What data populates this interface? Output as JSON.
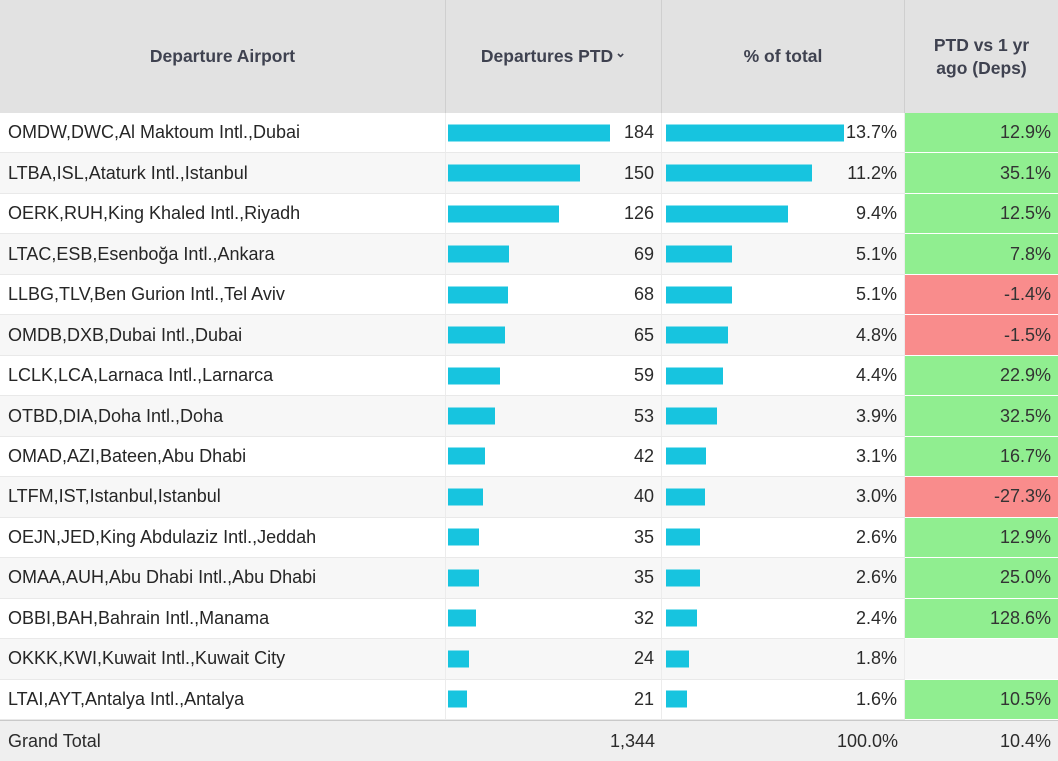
{
  "table": {
    "columns": [
      {
        "label": "Departure Airport",
        "sortable": true
      },
      {
        "label": "Departures PTD",
        "sortable": true,
        "sort_icon": "descending-caret"
      },
      {
        "label": "% of total",
        "sortable": true
      },
      {
        "label": "PTD vs 1 yr ago (Deps)",
        "sortable": true
      }
    ],
    "rows": [
      {
        "airport": "OMDW,DWC,Al Maktoum Intl.,Dubai",
        "departures": 184,
        "departures_label": "184",
        "pct": 13.7,
        "pct_label": "13.7%",
        "vs": 12.9,
        "vs_label": "12.9%"
      },
      {
        "airport": "LTBA,ISL,Ataturk Intl.,Istanbul",
        "departures": 150,
        "departures_label": "150",
        "pct": 11.2,
        "pct_label": "11.2%",
        "vs": 35.1,
        "vs_label": "35.1%"
      },
      {
        "airport": "OERK,RUH,King Khaled Intl.,Riyadh",
        "departures": 126,
        "departures_label": "126",
        "pct": 9.4,
        "pct_label": "9.4%",
        "vs": 12.5,
        "vs_label": "12.5%"
      },
      {
        "airport": "LTAC,ESB,Esenboğa Intl.,Ankara",
        "departures": 69,
        "departures_label": "69",
        "pct": 5.1,
        "pct_label": "5.1%",
        "vs": 7.8,
        "vs_label": "7.8%"
      },
      {
        "airport": "LLBG,TLV,Ben Gurion Intl.,Tel Aviv",
        "departures": 68,
        "departures_label": "68",
        "pct": 5.1,
        "pct_label": "5.1%",
        "vs": -1.4,
        "vs_label": "-1.4%"
      },
      {
        "airport": "OMDB,DXB,Dubai Intl.,Dubai",
        "departures": 65,
        "departures_label": "65",
        "pct": 4.8,
        "pct_label": "4.8%",
        "vs": -1.5,
        "vs_label": "-1.5%"
      },
      {
        "airport": "LCLK,LCA,Larnaca Intl.,Larnarca",
        "departures": 59,
        "departures_label": "59",
        "pct": 4.4,
        "pct_label": "4.4%",
        "vs": 22.9,
        "vs_label": "22.9%"
      },
      {
        "airport": "OTBD,DIA,Doha Intl.,Doha",
        "departures": 53,
        "departures_label": "53",
        "pct": 3.9,
        "pct_label": "3.9%",
        "vs": 32.5,
        "vs_label": "32.5%"
      },
      {
        "airport": "OMAD,AZI,Bateen,Abu Dhabi",
        "departures": 42,
        "departures_label": "42",
        "pct": 3.1,
        "pct_label": "3.1%",
        "vs": 16.7,
        "vs_label": "16.7%"
      },
      {
        "airport": "LTFM,IST,Istanbul,Istanbul",
        "departures": 40,
        "departures_label": "40",
        "pct": 3.0,
        "pct_label": "3.0%",
        "vs": -27.3,
        "vs_label": "-27.3%"
      },
      {
        "airport": "OEJN,JED,King Abdulaziz Intl.,Jeddah",
        "departures": 35,
        "departures_label": "35",
        "pct": 2.6,
        "pct_label": "2.6%",
        "vs": 12.9,
        "vs_label": "12.9%"
      },
      {
        "airport": "OMAA,AUH,Abu Dhabi Intl.,Abu Dhabi",
        "departures": 35,
        "departures_label": "35",
        "pct": 2.6,
        "pct_label": "2.6%",
        "vs": 25.0,
        "vs_label": "25.0%"
      },
      {
        "airport": "OBBI,BAH,Bahrain Intl.,Manama",
        "departures": 32,
        "departures_label": "32",
        "pct": 2.4,
        "pct_label": "2.4%",
        "vs": 128.6,
        "vs_label": "128.6%"
      },
      {
        "airport": "OKKK,KWI,Kuwait Intl.,Kuwait City",
        "departures": 24,
        "departures_label": "24",
        "pct": 1.8,
        "pct_label": "1.8%",
        "vs": null,
        "vs_label": ""
      },
      {
        "airport": "LTAI,AYT,Antalya Intl.,Antalya",
        "departures": 21,
        "departures_label": "21",
        "pct": 1.6,
        "pct_label": "1.6%",
        "vs": 10.5,
        "vs_label": "10.5%"
      }
    ],
    "grand_total": {
      "label": "Grand Total",
      "departures_label": "1,344",
      "pct_label": "100.0%",
      "vs_label": "10.4%"
    }
  },
  "colors": {
    "bar": "#17C4DF",
    "positive_bg": "#90EE90",
    "negative_bg": "#F98C8C",
    "header_bg": "#E2E2E2"
  },
  "chart_data": {
    "type": "table",
    "title": "Departures PTD by Departure Airport",
    "columns": [
      "Departure Airport",
      "Departures PTD",
      "% of total",
      "PTD vs 1 yr ago (Deps)"
    ],
    "bar_columns": [
      "Departures PTD",
      "% of total"
    ],
    "conditional_format_column": "PTD vs 1 yr ago (Deps)",
    "rows": [
      [
        "OMDW,DWC,Al Maktoum Intl.,Dubai",
        184,
        13.7,
        12.9
      ],
      [
        "LTBA,ISL,Ataturk Intl.,Istanbul",
        150,
        11.2,
        35.1
      ],
      [
        "OERK,RUH,King Khaled Intl.,Riyadh",
        126,
        9.4,
        12.5
      ],
      [
        "LTAC,ESB,Esenboğa Intl.,Ankara",
        69,
        5.1,
        7.8
      ],
      [
        "LLBG,TLV,Ben Gurion Intl.,Tel Aviv",
        68,
        5.1,
        -1.4
      ],
      [
        "OMDB,DXB,Dubai Intl.,Dubai",
        65,
        4.8,
        -1.5
      ],
      [
        "LCLK,LCA,Larnaca Intl.,Larnarca",
        59,
        4.4,
        22.9
      ],
      [
        "OTBD,DIA,Doha Intl.,Doha",
        53,
        3.9,
        32.5
      ],
      [
        "OMAD,AZI,Bateen,Abu Dhabi",
        42,
        3.1,
        16.7
      ],
      [
        "LTFM,IST,Istanbul,Istanbul",
        40,
        3.0,
        -27.3
      ],
      [
        "OEJN,JED,King Abdulaziz Intl.,Jeddah",
        35,
        2.6,
        12.9
      ],
      [
        "OMAA,AUH,Abu Dhabi Intl.,Abu Dhabi",
        35,
        2.6,
        25.0
      ],
      [
        "OBBI,BAH,Bahrain Intl.,Manama",
        32,
        2.4,
        128.6
      ],
      [
        "OKKK,KWI,Kuwait Intl.,Kuwait City",
        24,
        1.8,
        null
      ],
      [
        "LTAI,AYT,Antalya Intl.,Antalya",
        21,
        1.6,
        10.5
      ]
    ],
    "grand_total": [
      "Grand Total",
      1344,
      100.0,
      10.4
    ]
  }
}
